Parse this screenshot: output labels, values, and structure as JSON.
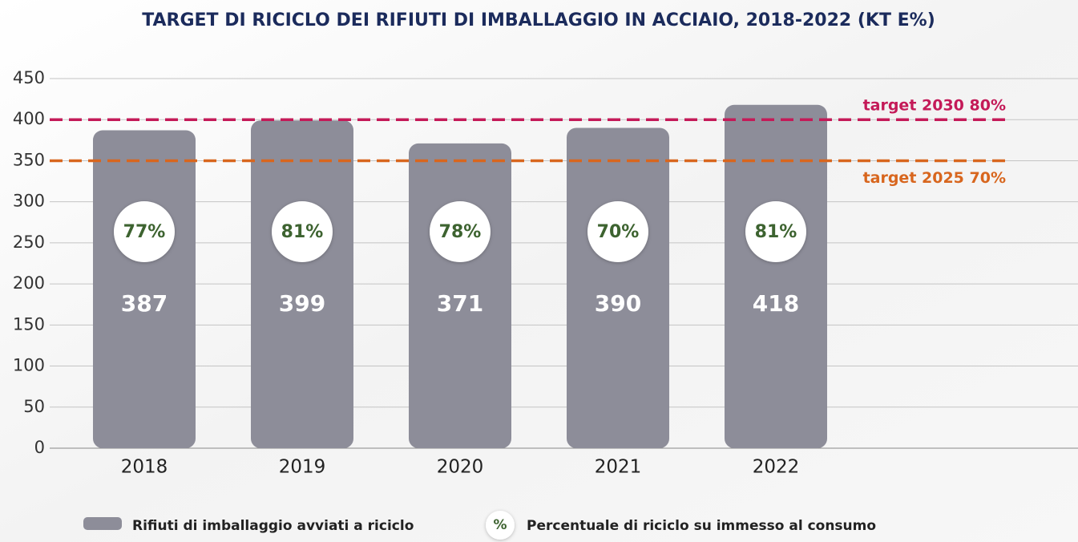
{
  "chart_data": {
    "type": "bar",
    "title": "TARGET DI RICICLO DEI RIFIUTI DI IMBALLAGGIO IN ACCIAIO, 2018-2022 (KT E%)",
    "categories": [
      "2018",
      "2019",
      "2020",
      "2021",
      "2022"
    ],
    "series": [
      {
        "name": "Rifiuti di imballaggio avviati a riciclo",
        "color": "#8d8d99",
        "values": [
          387,
          399,
          371,
          390,
          418
        ]
      },
      {
        "name": "Percentuale di riciclo su immesso al consumo",
        "color": "#3d6330",
        "marker_label": "%",
        "values": [
          77,
          81,
          78,
          70,
          81
        ],
        "value_labels": [
          "77%",
          "81%",
          "78%",
          "70%",
          "81%"
        ]
      }
    ],
    "targets": [
      {
        "label": "target 2030 80%",
        "value": 400,
        "color": "#c41a58"
      },
      {
        "label": "target 2025 70%",
        "value": 350,
        "color": "#d8661e"
      }
    ],
    "ylim": [
      0,
      450
    ],
    "yticks": [
      0,
      50,
      100,
      150,
      200,
      250,
      300,
      350,
      400,
      450
    ],
    "grid": true
  }
}
